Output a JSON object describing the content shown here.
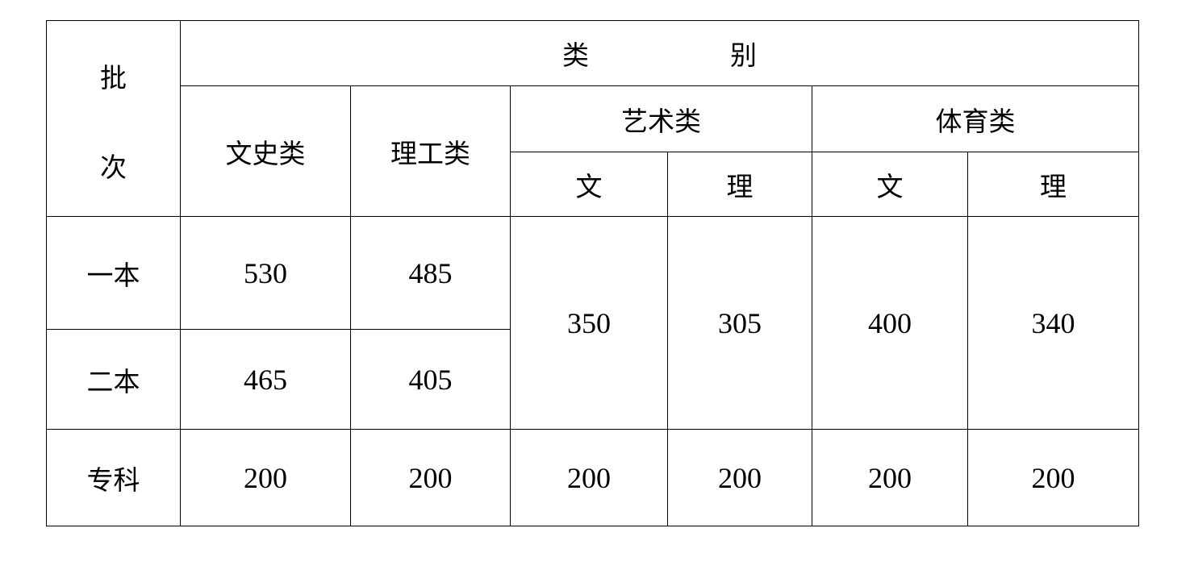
{
  "header": {
    "batch_label": [
      "批",
      "次"
    ],
    "category_label": [
      "类",
      "别"
    ],
    "columns": {
      "wenshi": "文史类",
      "ligong": "理工类",
      "yishu": "艺术类",
      "tiyu": "体育类",
      "sub": [
        "文",
        "理",
        "文",
        "理"
      ]
    }
  },
  "rows": [
    {
      "batch": "一本",
      "wenshi": "530",
      "ligong": "485"
    },
    {
      "batch": "二本",
      "wenshi": "465",
      "ligong": "405"
    },
    {
      "batch": "专科",
      "wenshi": "200",
      "ligong": "200",
      "yishu_wen": "200",
      "yishu_li": "200",
      "tiyu_wen": "200",
      "tiyu_li": "200"
    }
  ],
  "merged_benke": {
    "yishu_wen": "350",
    "yishu_li": "305",
    "tiyu_wen": "400",
    "tiyu_li": "340"
  }
}
